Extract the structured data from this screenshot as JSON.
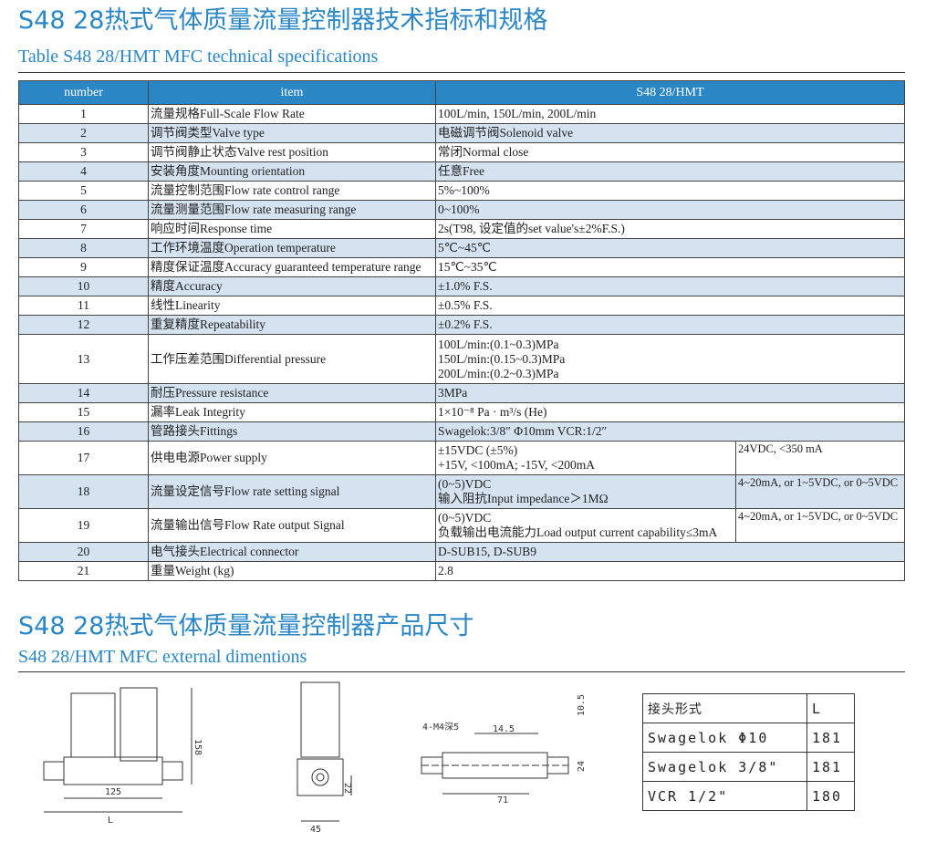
{
  "section1": {
    "title": "S48 28热式气体质量流量控制器技术指标和规格",
    "subtitle": "Table S48 28/HMT MFC technical specifications"
  },
  "table": {
    "headers": [
      "number",
      "item",
      "S48 28/HMT"
    ],
    "rows": [
      {
        "n": "1",
        "item": "流量规格Full-Scale Flow Rate",
        "v": "100L/min, 150L/min, 200L/min"
      },
      {
        "n": "2",
        "item": "调节阀类型Valve type",
        "v": "电磁调节阀Solenoid valve"
      },
      {
        "n": "3",
        "item": "调节阀静止状态Valve rest position",
        "v": "常闭Normal close"
      },
      {
        "n": "4",
        "item": "安装角度Mounting orientation",
        "v": "任意Free"
      },
      {
        "n": "5",
        "item": "流量控制范围Flow rate control range",
        "v": "5%~100%"
      },
      {
        "n": "6",
        "item": "流量测量范围Flow rate measuring range",
        "v": "0~100%"
      },
      {
        "n": "7",
        "item": "响应时间Response time",
        "v": "2s(T98, 设定值的set value's±2%F.S.)"
      },
      {
        "n": "8",
        "item": "工作环境温度Operation temperature",
        "v": "5℃~45℃"
      },
      {
        "n": "9",
        "item": "精度保证温度Accuracy guaranteed temperature range",
        "v": "15℃~35℃"
      },
      {
        "n": "10",
        "item": "精度Accuracy",
        "v": "±1.0% F.S."
      },
      {
        "n": "11",
        "item": "线性Linearity",
        "v": "±0.5% F.S."
      },
      {
        "n": "12",
        "item": "重复精度Repeatability",
        "v": "±0.2% F.S."
      },
      {
        "n": "13",
        "item": "工作压差范围Differential pressure",
        "v": "100L/min:(0.1~0.3)MPa",
        "v2": "150L/min:(0.15~0.3)MPa",
        "v3": "200L/min:(0.2~0.3)MPa"
      },
      {
        "n": "14",
        "item": "耐压Pressure resistance",
        "v": "3MPa"
      },
      {
        "n": "15",
        "item": "漏率Leak Integrity",
        "v": "1×10⁻⁸ Pa · m³/s (He)"
      },
      {
        "n": "16",
        "item": "管路接头Fittings",
        "v": "Swagelok:3/8″  Φ10mm   VCR:1/2″"
      },
      {
        "n": "17",
        "item": "供电电源Power supply",
        "v": "±15VDC (±5%)",
        "v2": "+15V, <100mA; -15V, <200mA",
        "alt": "24VDC, <350 mA"
      },
      {
        "n": "18",
        "item": "流量设定信号Flow rate setting signal",
        "v": "(0~5)VDC",
        "v2": "输入阻抗Input impedance＞1MΩ",
        "alt": "4~20mA, or 1~5VDC, or 0~5VDC"
      },
      {
        "n": "19",
        "item": "流量输出信号Flow Rate output Signal",
        "v": "(0~5)VDC",
        "v2": "负载输出电流能力Load output current capability≤3mA",
        "alt": "4~20mA, or 1~5VDC, or 0~5VDC"
      },
      {
        "n": "20",
        "item": "电气接头Electrical connector",
        "v": "D-SUB15, D-SUB9"
      },
      {
        "n": "21",
        "item": "重量Weight (kg)",
        "v": "2.8"
      }
    ]
  },
  "section2": {
    "title": "S48 28热式气体质量流量控制器产品尺寸",
    "subtitle": "S48 28/HMT MFC external dimentions"
  },
  "drawing_labels": {
    "height": "158",
    "length125": "125",
    "L": "L",
    "d22": "22",
    "d45": "45",
    "m4": "4-M4深5",
    "d145": "14.5",
    "d105": "10.5",
    "d24": "24",
    "d71": "71"
  },
  "fitting_table": {
    "headers": [
      "接头形式",
      "L"
    ],
    "rows": [
      [
        "Swagelok Φ10",
        "181"
      ],
      [
        "Swagelok 3/8\"",
        "181"
      ],
      [
        "VCR 1/2\"",
        "180"
      ]
    ]
  }
}
